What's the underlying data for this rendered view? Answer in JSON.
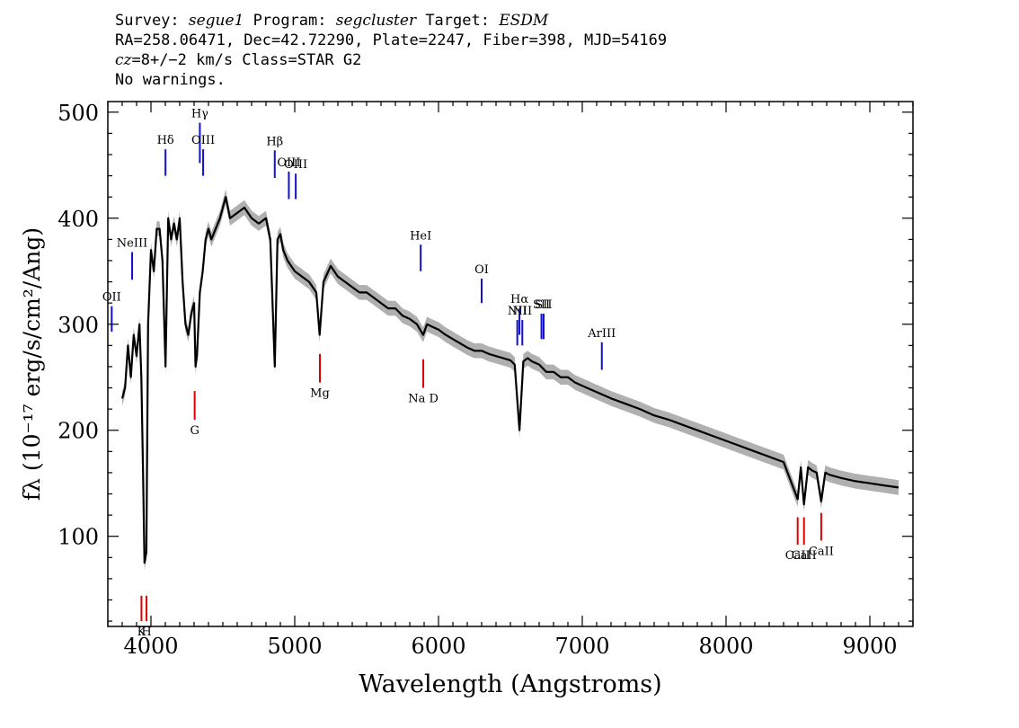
{
  "header": {
    "line1": {
      "survey_label": "Survey: ",
      "survey": "segue1",
      "program_label": " Program: ",
      "program": "segcluster",
      "target_label": " Target: ",
      "target": "ESDM"
    },
    "line2": "RA=258.06471, Dec=42.72290, Plate=2247, Fiber=398, MJD=54169",
    "line3": {
      "cz_label": "cz",
      "cz_value": "=8+/−2 km/s Class=STAR G2"
    },
    "line4": "No warnings."
  },
  "chart_data": {
    "type": "line",
    "xlabel": "Wavelength (Angstroms)",
    "ylabel": "fλ (10⁻¹⁷ erg/s/cm²/Ang)",
    "xlim": [
      3700,
      9300
    ],
    "ylim": [
      15,
      510
    ],
    "x_ticks": [
      4000,
      5000,
      6000,
      7000,
      8000,
      9000
    ],
    "y_ticks": [
      100,
      200,
      300,
      400,
      500
    ],
    "grid": false,
    "colors": {
      "spectrum": "#000000",
      "error_band": "#b0b0b0",
      "emission": "#1010d0",
      "absorption": "#e00000"
    },
    "series": [
      {
        "x": [
          3800,
          3820,
          3840,
          3860,
          3880,
          3900,
          3920,
          3933,
          3945,
          3955,
          3968,
          3980,
          4000,
          4020,
          4040,
          4060,
          4080,
          4101,
          4120,
          4140,
          4160,
          4180,
          4200,
          4220,
          4240,
          4260,
          4280,
          4300,
          4310,
          4320,
          4340,
          4360,
          4380,
          4400,
          4420,
          4450,
          4480,
          4500,
          4520,
          4550,
          4600,
          4650,
          4700,
          4750,
          4800,
          4830,
          4861,
          4880,
          4900,
          4920,
          4950,
          5000,
          5050,
          5100,
          5150,
          5173,
          5200,
          5250,
          5300,
          5350,
          5400,
          5450,
          5500,
          5550,
          5600,
          5650,
          5700,
          5750,
          5800,
          5850,
          5893,
          5920,
          5950,
          6000,
          6050,
          6100,
          6150,
          6200,
          6250,
          6300,
          6350,
          6400,
          6450,
          6500,
          6530,
          6563,
          6590,
          6620,
          6650,
          6700,
          6750,
          6800,
          6850,
          6900,
          6950,
          7000,
          7100,
          7200,
          7300,
          7400,
          7500,
          7600,
          7700,
          7800,
          7900,
          8000,
          8100,
          8200,
          8300,
          8400,
          8498,
          8520,
          8542,
          8570,
          8600,
          8630,
          8662,
          8690,
          8720,
          8800,
          8900,
          9000,
          9100,
          9200
        ],
        "y": [
          230,
          240,
          280,
          250,
          290,
          270,
          300,
          250,
          160,
          75,
          85,
          300,
          370,
          350,
          390,
          390,
          360,
          260,
          400,
          380,
          395,
          380,
          400,
          340,
          300,
          290,
          310,
          320,
          260,
          270,
          330,
          350,
          380,
          390,
          380,
          390,
          400,
          410,
          420,
          400,
          405,
          410,
          400,
          395,
          400,
          380,
          260,
          380,
          385,
          370,
          360,
          350,
          345,
          340,
          330,
          290,
          340,
          355,
          345,
          340,
          335,
          330,
          330,
          325,
          320,
          315,
          315,
          308,
          305,
          300,
          290,
          300,
          298,
          295,
          290,
          286,
          282,
          278,
          275,
          275,
          272,
          270,
          268,
          266,
          262,
          200,
          265,
          268,
          265,
          262,
          255,
          255,
          250,
          250,
          245,
          242,
          236,
          230,
          225,
          220,
          214,
          210,
          205,
          200,
          195,
          190,
          185,
          180,
          175,
          170,
          135,
          165,
          130,
          165,
          162,
          160,
          133,
          160,
          158,
          155,
          152,
          150,
          148,
          146
        ]
      }
    ],
    "line_markers": [
      {
        "label": "Hδ",
        "wavelength": 4101,
        "kind": "emission",
        "y_top": 440,
        "y_bottom": 465
      },
      {
        "label": "Hγ",
        "wavelength": 4340,
        "kind": "emission",
        "y_top": 452,
        "y_bottom": 490
      },
      {
        "label": "OIII",
        "wavelength": 4363,
        "kind": "emission",
        "y_top": 440,
        "y_bottom": 465
      },
      {
        "label": "Hβ",
        "wavelength": 4861,
        "kind": "emission",
        "y_top": 438,
        "y_bottom": 464
      },
      {
        "label": "OIII",
        "wavelength": 4959,
        "kind": "emission",
        "y_top": 418,
        "y_bottom": 444
      },
      {
        "label": "OIII",
        "wavelength": 5007,
        "kind": "emission",
        "y_top": 418,
        "y_bottom": 442
      },
      {
        "label": "NeIII",
        "wavelength": 3869,
        "kind": "emission",
        "y_top": 342,
        "y_bottom": 368
      },
      {
        "label": "OII",
        "wavelength": 3727,
        "kind": "emission",
        "y_top": 293,
        "y_bottom": 317
      },
      {
        "label": "HeI",
        "wavelength": 5876,
        "kind": "emission",
        "y_top": 350,
        "y_bottom": 375
      },
      {
        "label": "OI",
        "wavelength": 6300,
        "kind": "emission",
        "y_top": 320,
        "y_bottom": 343
      },
      {
        "label": "NII",
        "wavelength": 6548,
        "kind": "emission",
        "y_top": 280,
        "y_bottom": 304
      },
      {
        "label": "Hα",
        "wavelength": 6563,
        "kind": "emission",
        "y_top": 290,
        "y_bottom": 315
      },
      {
        "label": "NII",
        "wavelength": 6583,
        "kind": "emission",
        "y_top": 280,
        "y_bottom": 304
      },
      {
        "label": "SII",
        "wavelength": 6716,
        "kind": "emission",
        "y_top": 286,
        "y_bottom": 310
      },
      {
        "label": "SII",
        "wavelength": 6731,
        "kind": "emission",
        "y_top": 286,
        "y_bottom": 310
      },
      {
        "label": "ArIII",
        "wavelength": 7136,
        "kind": "emission",
        "y_top": 257,
        "y_bottom": 283
      },
      {
        "label": "K",
        "wavelength": 3934,
        "kind": "absorption",
        "y_top": 20,
        "y_bottom": 44
      },
      {
        "label": "H",
        "wavelength": 3969,
        "kind": "absorption",
        "y_top": 20,
        "y_bottom": 44
      },
      {
        "label": "G",
        "wavelength": 4304,
        "kind": "absorption",
        "y_top": 210,
        "y_bottom": 237
      },
      {
        "label": "Mg",
        "wavelength": 5175,
        "kind": "absorption",
        "y_top": 245,
        "y_bottom": 272
      },
      {
        "label": "Na D",
        "wavelength": 5894,
        "kind": "absorption",
        "y_top": 240,
        "y_bottom": 267
      },
      {
        "label": "CaII",
        "wavelength": 8498,
        "kind": "absorption",
        "y_top": 92,
        "y_bottom": 118
      },
      {
        "label": "CaII",
        "wavelength": 8542,
        "kind": "absorption",
        "y_top": 92,
        "y_bottom": 118
      },
      {
        "label": "CaII",
        "wavelength": 8662,
        "kind": "absorption",
        "y_top": 96,
        "y_bottom": 122
      }
    ]
  }
}
